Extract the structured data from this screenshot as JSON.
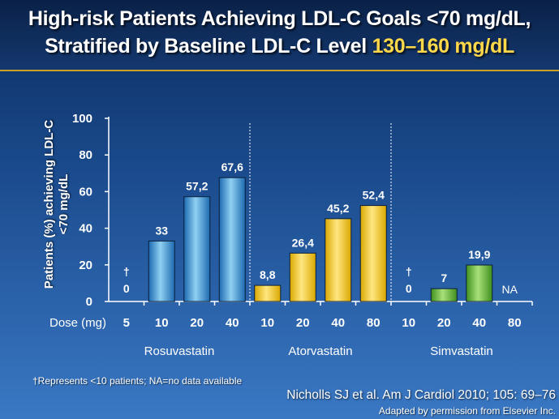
{
  "title": {
    "line1": "High-risk Patients Achieving LDL-C Goals <70 mg/dL,",
    "line2_prefix": "Stratified by Baseline LDL-C Level ",
    "line2_highlight": "130–160 mg/dL"
  },
  "chart_data": {
    "type": "bar",
    "ylabel_line1": "Patients (%) achieving LDL-C",
    "ylabel_line2": "<70 mg/dL",
    "xlabel": "Dose (mg)",
    "ylim": [
      0,
      100
    ],
    "yticks": [
      "0",
      "20",
      "40",
      "60",
      "80",
      "100"
    ],
    "groups": [
      {
        "name": "Rosuvastatin",
        "color_top": "#8fd0f2",
        "color_bottom": "#1c6ab0",
        "doses": [
          "5",
          "10",
          "20",
          "40"
        ],
        "values": [
          0,
          33,
          57.2,
          67.6
        ],
        "labels": [
          "0",
          "33",
          "57,2",
          "67,6"
        ],
        "dagger": [
          true,
          false,
          false,
          false
        ]
      },
      {
        "name": "Atorvastatin",
        "color_top": "#ffe680",
        "color_bottom": "#d9a800",
        "doses": [
          "10",
          "20",
          "40",
          "80"
        ],
        "values": [
          8.8,
          26.4,
          45.2,
          52.4
        ],
        "labels": [
          "8,8",
          "26,4",
          "45,2",
          "52,4"
        ],
        "dagger": [
          false,
          false,
          false,
          false
        ]
      },
      {
        "name": "Simvastatin",
        "color_top": "#a8e07a",
        "color_bottom": "#3f8f1c",
        "doses": [
          "10",
          "20",
          "40",
          "80"
        ],
        "values": [
          0,
          7,
          19.9,
          null
        ],
        "labels": [
          "0",
          "7",
          "19,9",
          "NA"
        ],
        "dagger": [
          true,
          false,
          false,
          false
        ]
      }
    ],
    "dagger_symbol": "†"
  },
  "footnote": "†Represents <10 patients; NA=no data available",
  "citation": "Nicholls SJ et al. Am J Cardiol 2010; 105: 69–76",
  "permission": "Adapted by permission from Elsevier Inc."
}
